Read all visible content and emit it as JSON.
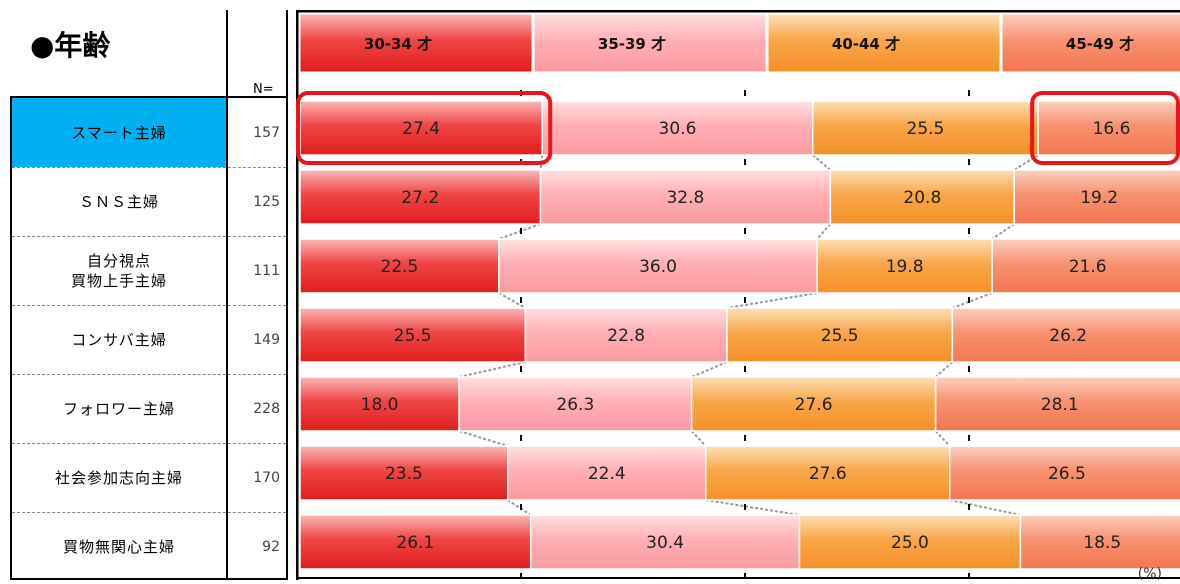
{
  "title": "●年齢",
  "n_header": "N=",
  "rows": [
    {
      "label": "スマート主婦",
      "n": "157",
      "highlight": true
    },
    {
      "label": "ＳＮＳ主婦",
      "n": "125",
      "highlight": false
    },
    {
      "label": "自分視点\n買物上手主婦",
      "n": "111",
      "highlight": false
    },
    {
      "label": "コンサバ主婦",
      "n": "149",
      "highlight": false
    },
    {
      "label": "フォロワー主婦",
      "n": "228",
      "highlight": false
    },
    {
      "label": "社会参加志向主婦",
      "n": "170",
      "highlight": false
    },
    {
      "label": "買物無関心主婦",
      "n": "92",
      "highlight": false
    }
  ],
  "unit_label": "(%)",
  "chart_data": {
    "type": "bar",
    "orientation": "horizontal",
    "stacked": true,
    "categories": [
      "スマート主婦",
      "ＳＮＳ主婦",
      "自分視点買物上手主婦",
      "コンサバ主婦",
      "フォロワー主婦",
      "社会参加志向主婦",
      "買物無関心主婦"
    ],
    "series": [
      {
        "name": "30-34 才",
        "color": "#f04545",
        "values": [
          27.4,
          27.2,
          22.5,
          25.5,
          18.0,
          23.5,
          26.1
        ]
      },
      {
        "name": "35-39 才",
        "color": "#ffb0b5",
        "values": [
          30.6,
          32.8,
          36.0,
          22.8,
          26.3,
          22.4,
          30.4
        ]
      },
      {
        "name": "40-44 才",
        "color": "#f9a64a",
        "values": [
          25.5,
          20.8,
          19.8,
          25.5,
          27.6,
          27.6,
          25.0
        ]
      },
      {
        "name": "45-49 才",
        "color": "#f79272",
        "values": [
          16.6,
          19.2,
          21.6,
          26.2,
          28.1,
          26.5,
          18.5
        ]
      }
    ],
    "xlim": [
      0,
      100
    ],
    "legend": "top",
    "highlight_color": "#e8141e"
  }
}
